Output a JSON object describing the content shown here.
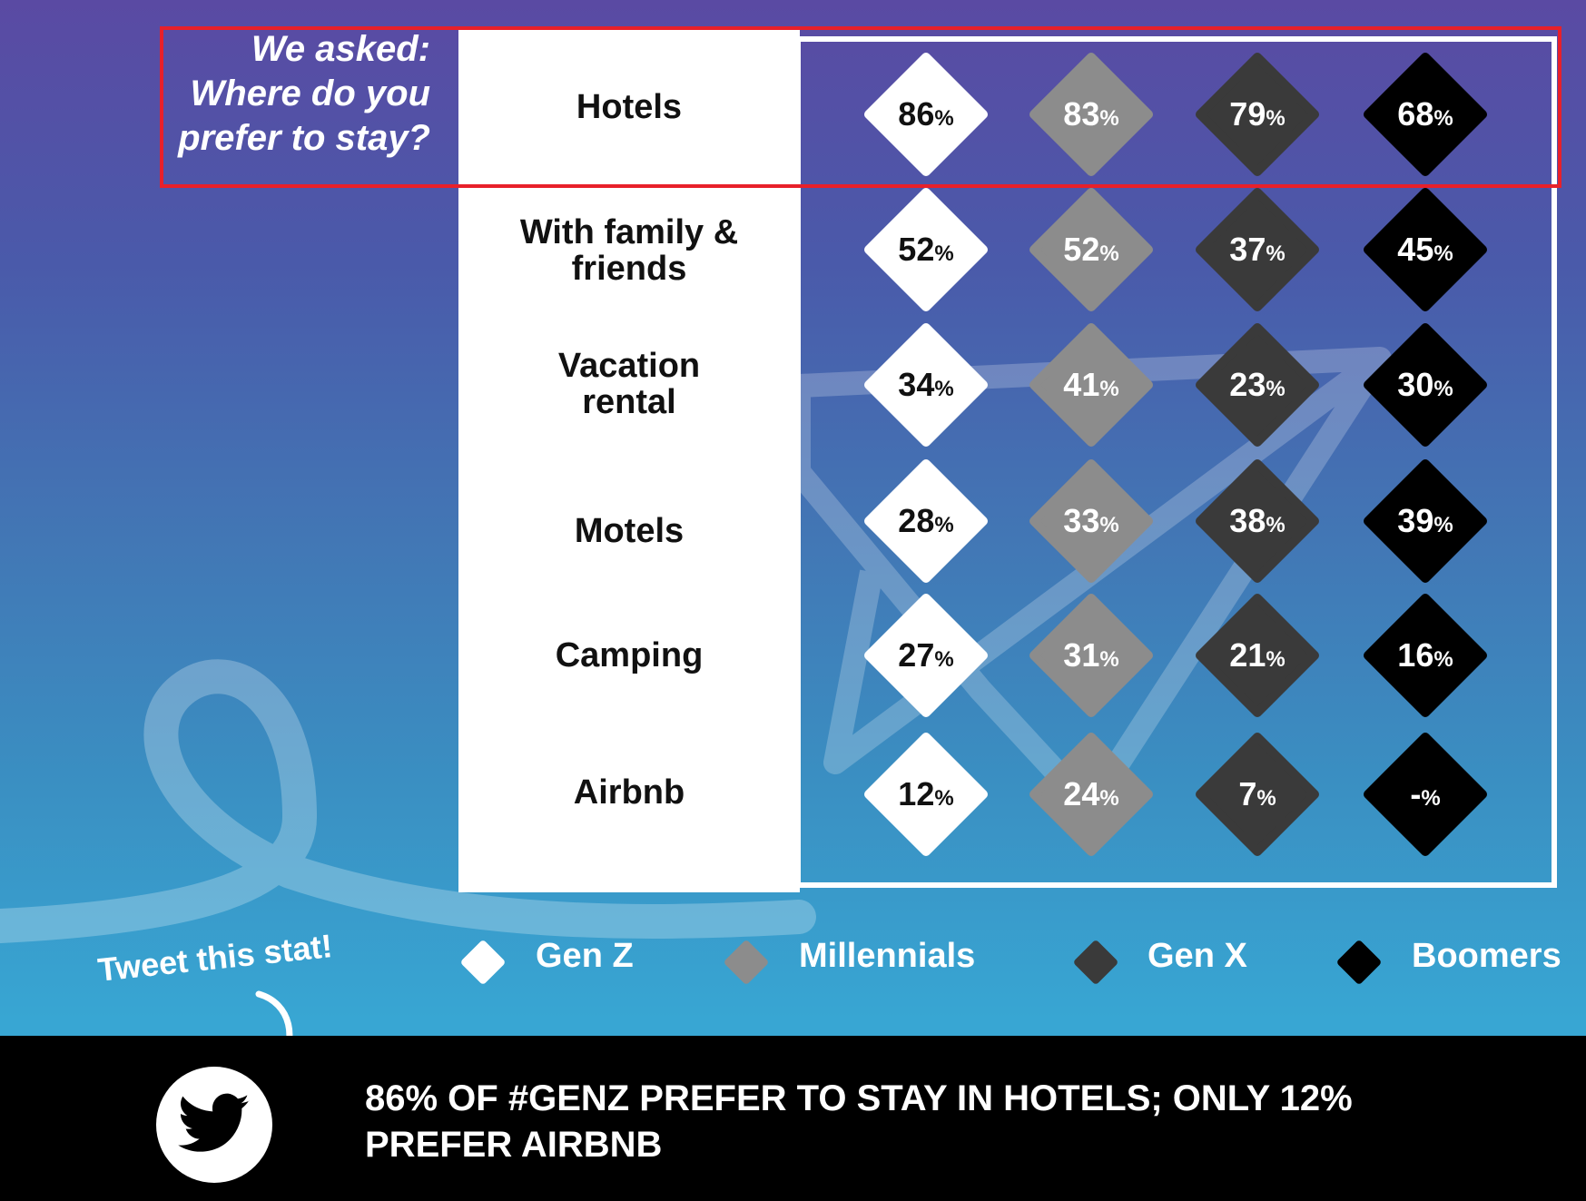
{
  "question": {
    "line1": "We asked:",
    "line2": "Where do you",
    "line3": "prefer to stay?"
  },
  "chart_data": {
    "type": "table",
    "categories": [
      "Hotels",
      "With family & friends",
      "Vacation rental",
      "Motels",
      "Camping",
      "Airbnb"
    ],
    "series": [
      {
        "name": "Gen Z",
        "color": "#ffffff",
        "text_color": "#111111",
        "values": [
          86,
          52,
          34,
          28,
          27,
          12
        ],
        "labels": [
          "86",
          "52",
          "34",
          "28",
          "27",
          "12"
        ]
      },
      {
        "name": "Millennials",
        "color": "#8c8c8c",
        "text_color": "#ffffff",
        "values": [
          83,
          52,
          41,
          33,
          31,
          24
        ],
        "labels": [
          "83",
          "52",
          "41",
          "33",
          "31",
          "24"
        ]
      },
      {
        "name": "Gen X",
        "color": "#3a3a3a",
        "text_color": "#ffffff",
        "values": [
          79,
          37,
          23,
          38,
          21,
          7
        ],
        "labels": [
          "79",
          "37",
          "23",
          "38",
          "21",
          "7"
        ]
      },
      {
        "name": "Boomers",
        "color": "#000000",
        "text_color": "#ffffff",
        "values": [
          68,
          45,
          30,
          39,
          16,
          null
        ],
        "labels": [
          "68",
          "45",
          "30",
          "39",
          "16",
          "-"
        ]
      }
    ],
    "unit": "%"
  },
  "row_labels": {
    "hotels": "Hotels",
    "family_line1": "With family &",
    "family_line2": "friends",
    "vacation_line1": "Vacation",
    "vacation_line2": "rental",
    "motels": "Motels",
    "camping": "Camping",
    "airbnb": "Airbnb"
  },
  "legend": {
    "genz": "Gen Z",
    "millennials": "Millennials",
    "genx": "Gen X",
    "boomers": "Boomers"
  },
  "tweet_prompt": "Tweet this stat!",
  "footer": {
    "line1": "86% OF #GENZ PREFER TO STAY IN HOTELS; ONLY 12%",
    "line2": "PREFER AIRBNB"
  },
  "colors": {
    "highlight": "#e8202a",
    "footer_bg": "#000000"
  },
  "icons": {
    "twitter": "twitter-bird-icon",
    "arrow": "curved-arrow-icon"
  }
}
